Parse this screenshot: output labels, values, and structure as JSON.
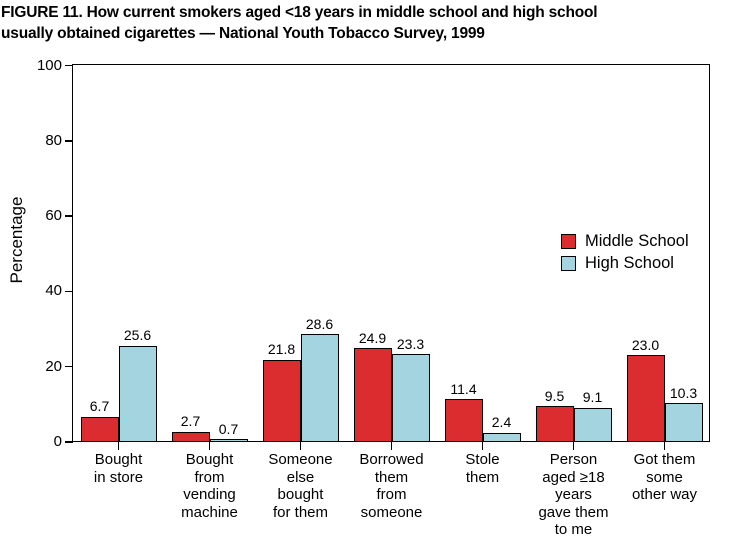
{
  "figure": {
    "title": "FIGURE 11. How current smokers aged <18 years in middle school and high school\nusually obtained cigarettes — National Youth Tobacco Survey, 1999"
  },
  "chart_data": {
    "type": "bar",
    "title": "FIGURE 11. How current smokers aged <18 years in middle school and high school usually obtained cigarettes — National Youth Tobacco Survey, 1999",
    "categories": [
      "Bought\nin store",
      "Bought\nfrom\nvending\nmachine",
      "Someone\nelse\nbought\nfor them",
      "Borrowed\nthem\nfrom\nsomeone",
      "Stole\nthem",
      "Person\naged ≥18\nyears\ngave them\nto me",
      "Got them\nsome\nother way"
    ],
    "series": [
      {
        "name": "Middle School",
        "color": "#DB2D30",
        "values": [
          6.7,
          2.7,
          21.8,
          24.9,
          11.4,
          9.5,
          23.0
        ]
      },
      {
        "name": "High School",
        "color": "#A3D4E0",
        "values": [
          25.6,
          0.7,
          28.6,
          23.3,
          2.4,
          9.1,
          10.3
        ]
      }
    ],
    "xlabel": "",
    "ylabel": "Percentage",
    "yticks": [
      0,
      20,
      40,
      60,
      80,
      100
    ],
    "ylim": [
      0,
      100
    ],
    "grid": false,
    "legend_position": "inside-right",
    "value_labels_decimals": 1,
    "axis_color": "#000000",
    "background_color": "#ffffff"
  }
}
